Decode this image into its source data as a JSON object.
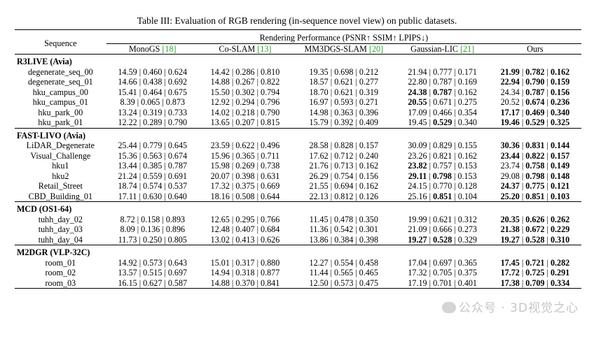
{
  "caption": "Table III: Evaluation of RGB rendering (in-sequence novel view) on public datasets.",
  "header": {
    "sequence": "Sequence",
    "group": "Rendering Performance (PSNR↑ SSIM↑ LPIPS↓)",
    "methods": [
      {
        "name": "MonoGS ",
        "cite": "[18]"
      },
      {
        "name": "Co-SLAM ",
        "cite": "[13]"
      },
      {
        "name": "MM3DGS-SLAM ",
        "cite": "[20]"
      },
      {
        "name": "Gaussian-LIC ",
        "cite": "[21]"
      },
      {
        "name": "Ours",
        "cite": ""
      }
    ]
  },
  "groups": [
    {
      "name": "R3LIVE (Avia)",
      "rows": [
        {
          "seq": "degenerate_seq_00",
          "cells": [
            [
              "14.59 | 0.460 | 0.624",
              false
            ],
            [
              "14.42 | 0.286 | 0.810",
              false
            ],
            [
              "19.35 | 0.698 | 0.212",
              false
            ],
            [
              "21.94 | 0.777 | 0.171",
              false
            ],
            [
              "21.99 | 0.782 | 0.162",
              true
            ]
          ]
        },
        {
          "seq": "degenerate_seq_01",
          "cells": [
            [
              "14.66 | 0.438 | 0.692",
              false
            ],
            [
              "14.88 | 0.267 | 0.822",
              false
            ],
            [
              "18.57 | 0.621 | 0.277",
              false
            ],
            [
              "22.80 | 0.787 | 0.169",
              false
            ],
            [
              "22.94 | 0.790 | 0.159",
              true
            ]
          ]
        },
        {
          "seq": "hku_campus_00",
          "cells": [
            [
              "15.41 | 0.464 | 0.675",
              false
            ],
            [
              "15.50 | 0.302 | 0.794",
              false
            ],
            [
              "18.70 | 0.621 | 0.319",
              false
            ],
            [
              "24.38 | 0.787 | 0.162",
              "pp"
            ],
            [
              "24.34 | 0.787 | 0.156",
              "ssl"
            ]
          ]
        },
        {
          "seq": "hku_campus_01",
          "cells": [
            [
              "8.39 | 0.065 | 0.873",
              false
            ],
            [
              "12.92 | 0.294 | 0.796",
              false
            ],
            [
              "16.97 | 0.593 | 0.271",
              false
            ],
            [
              "20.55 | 0.671 | 0.275",
              "p"
            ],
            [
              "20.52 | 0.674 | 0.236",
              "sl"
            ]
          ]
        },
        {
          "seq": "hku_park_00",
          "cells": [
            [
              "13.24 | 0.319 | 0.733",
              false
            ],
            [
              "14.02 | 0.218 | 0.790",
              false
            ],
            [
              "14.98 | 0.363 | 0.396",
              false
            ],
            [
              "17.09 | 0.466 | 0.354",
              false
            ],
            [
              "17.17 | 0.469 | 0.340",
              true
            ]
          ]
        },
        {
          "seq": "hku_park_01",
          "cells": [
            [
              "12.22 | 0.289 | 0.790",
              false
            ],
            [
              "13.65 | 0.207 | 0.815",
              false
            ],
            [
              "15.79 | 0.392 | 0.409",
              false
            ],
            [
              "19.45 | 0.529 | 0.340",
              "s"
            ],
            [
              "19.46 | 0.529 | 0.325",
              true
            ]
          ]
        }
      ]
    },
    {
      "name": "FAST-LIVO (Avia)",
      "rows": [
        {
          "seq": "LiDAR_Degenerate",
          "cells": [
            [
              "25.44 | 0.779 | 0.645",
              false
            ],
            [
              "23.59 | 0.622 | 0.496",
              false
            ],
            [
              "28.58 | 0.828 | 0.157",
              false
            ],
            [
              "30.09 | 0.829 | 0.155",
              false
            ],
            [
              "30.36 | 0.831 | 0.144",
              true
            ]
          ]
        },
        {
          "seq": "Visual_Challenge",
          "cells": [
            [
              "15.36 | 0.563 | 0.674",
              false
            ],
            [
              "15.96 | 0.365 | 0.711",
              false
            ],
            [
              "17.62 | 0.712 | 0.240",
              false
            ],
            [
              "23.26 | 0.821 | 0.162",
              false
            ],
            [
              "23.44 | 0.822 | 0.157",
              true
            ]
          ]
        },
        {
          "seq": "hku1",
          "cells": [
            [
              "13.44 | 0.385 | 0.787",
              false
            ],
            [
              "15.98 | 0.269 | 0.738",
              false
            ],
            [
              "21.76 | 0.713 | 0.162",
              false
            ],
            [
              "23.82 | 0.757 | 0.153",
              "p"
            ],
            [
              "23.74 | 0.758 | 0.149",
              "sl"
            ]
          ]
        },
        {
          "seq": "hku2",
          "cells": [
            [
              "21.24 | 0.559 | 0.691",
              false
            ],
            [
              "20.07 | 0.398 | 0.631",
              false
            ],
            [
              "26.29 | 0.754 | 0.156",
              false
            ],
            [
              "29.11 | 0.798 | 0.153",
              "ps"
            ],
            [
              "29.08 | 0.798 | 0.148",
              "sl"
            ]
          ]
        },
        {
          "seq": "Retail_Street",
          "cells": [
            [
              "18.74 | 0.574 | 0.537",
              false
            ],
            [
              "17.32 | 0.375 | 0.669",
              false
            ],
            [
              "21.55 | 0.694 | 0.162",
              false
            ],
            [
              "24.15 | 0.770 | 0.128",
              false
            ],
            [
              "24.37 | 0.775 | 0.121",
              true
            ]
          ]
        },
        {
          "seq": "CBD_Building_01",
          "cells": [
            [
              "17.11 | 0.630 | 0.640",
              false
            ],
            [
              "18.16 | 0.508 | 0.644",
              false
            ],
            [
              "22.13 | 0.812 | 0.126",
              false
            ],
            [
              "25.16 | 0.851 | 0.104",
              "s"
            ],
            [
              "25.20 | 0.851 | 0.103",
              true
            ]
          ]
        }
      ]
    },
    {
      "name": "MCD (OS1-64)",
      "rows": [
        {
          "seq": "tuhh_day_02",
          "cells": [
            [
              "8.72 | 0.158 | 0.893",
              false
            ],
            [
              "12.65 | 0.295 | 0.766",
              false
            ],
            [
              "11.45 | 0.478 | 0.350",
              false
            ],
            [
              "19.99 | 0.621 | 0.312",
              false
            ],
            [
              "20.35 | 0.626 | 0.262",
              true
            ]
          ]
        },
        {
          "seq": "tuhh_day_03",
          "cells": [
            [
              "8.09 | 0.136 | 0.896",
              false
            ],
            [
              "12.48 | 0.407 | 0.684",
              false
            ],
            [
              "11.36 | 0.542 | 0.301",
              false
            ],
            [
              "21.09 | 0.666 | 0.273",
              false
            ],
            [
              "21.38 | 0.672 | 0.229",
              true
            ]
          ]
        },
        {
          "seq": "tuhh_day_04",
          "cells": [
            [
              "11.73 | 0.250 | 0.805",
              false
            ],
            [
              "13.02 | 0.413 | 0.626",
              false
            ],
            [
              "13.86 | 0.384 | 0.398",
              false
            ],
            [
              "19.27 | 0.528 | 0.329",
              "ps"
            ],
            [
              "19.27 | 0.528 | 0.310",
              true
            ]
          ]
        }
      ]
    },
    {
      "name": "M2DGR (VLP-32C)",
      "rows": [
        {
          "seq": "room_01",
          "cells": [
            [
              "14.92 | 0.573 | 0.643",
              false
            ],
            [
              "15.01 | 0.317 | 0.880",
              false
            ],
            [
              "12.27 | 0.554 | 0.458",
              false
            ],
            [
              "17.04 | 0.697 | 0.365",
              false
            ],
            [
              "17.45 | 0.721 | 0.282",
              true
            ]
          ]
        },
        {
          "seq": "room_02",
          "cells": [
            [
              "13.57 | 0.515 | 0.697",
              false
            ],
            [
              "14.94 | 0.318 | 0.877",
              false
            ],
            [
              "11.44 | 0.565 | 0.465",
              false
            ],
            [
              "17.32 | 0.705 | 0.375",
              false
            ],
            [
              "17.72 | 0.725 | 0.291",
              true
            ]
          ]
        },
        {
          "seq": "room_03",
          "cells": [
            [
              "16.15 | 0.627 | 0.587",
              false
            ],
            [
              "14.88 | 0.370 | 0.841",
              false
            ],
            [
              "12.50 | 0.573 | 0.475",
              false
            ],
            [
              "17.19 | 0.701 | 0.401",
              false
            ],
            [
              "17.38 | 0.709 | 0.334",
              true
            ]
          ]
        }
      ]
    }
  ],
  "watermark": "公众号 · 3D视觉之心"
}
